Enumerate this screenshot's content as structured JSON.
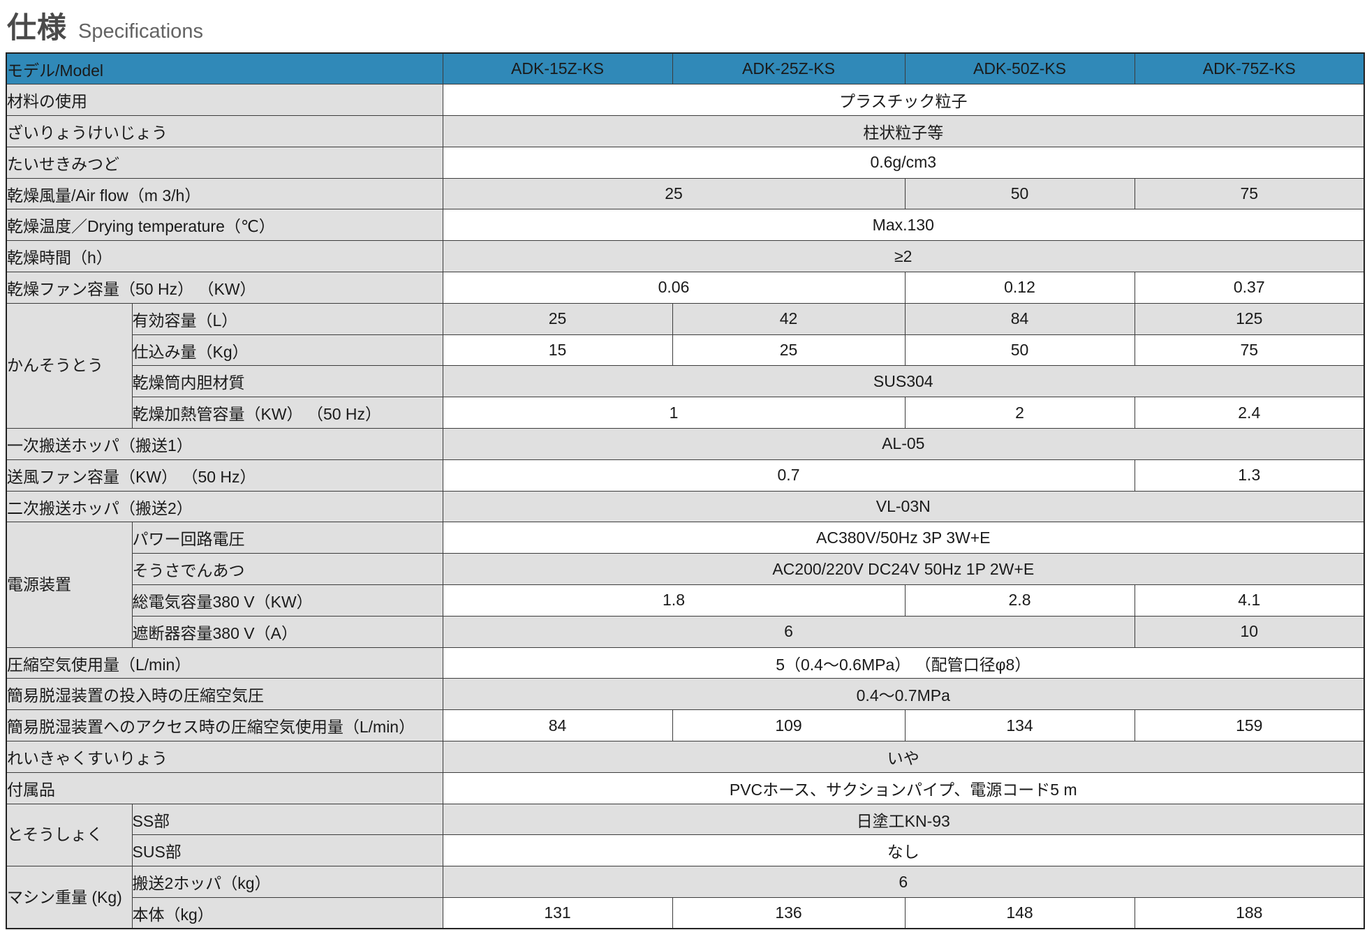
{
  "page": {
    "title_ja": "仕様",
    "title_en": "Specifications"
  },
  "colors": {
    "header_bg": "#3089B8",
    "header_text": "#FFFFFF",
    "gray_cell": "#E0E0E0",
    "white_cell": "#FFFFFF",
    "border": "#3C3C3C",
    "body_text": "#1A1A1A"
  },
  "table": {
    "header": {
      "label": "モデル/Model",
      "models": [
        "ADK-15Z-KS",
        "ADK-25Z-KS",
        "ADK-50Z-KS",
        "ADK-75Z-KS"
      ]
    },
    "rows": [
      {
        "label": "材料の使用",
        "cells": [
          {
            "t": "プラスチック粒子",
            "s": 4
          }
        ]
      },
      {
        "label": "ざいりょうけいじょう",
        "cells": [
          {
            "t": "柱状粒子等",
            "s": 4
          }
        ]
      },
      {
        "label": "たいせきみつど",
        "cells": [
          {
            "t": "0.6g/cm3",
            "s": 4
          }
        ]
      },
      {
        "label": "乾燥風量/Air flow（m 3/h）",
        "cells": [
          {
            "t": "25",
            "s": 2
          },
          {
            "t": "50",
            "s": 1
          },
          {
            "t": "75",
            "s": 1
          }
        ]
      },
      {
        "label": "乾燥温度／Drying temperature（℃）",
        "cells": [
          {
            "t": "Max.130",
            "s": 4
          }
        ]
      },
      {
        "label": "乾燥時間（h）",
        "cells": [
          {
            "t": "≥2",
            "s": 4
          }
        ]
      },
      {
        "label": "乾燥ファン容量（50 Hz） （KW）",
        "cells": [
          {
            "t": "0.06",
            "s": 2
          },
          {
            "t": "0.12",
            "s": 1
          },
          {
            "t": "0.37",
            "s": 1
          }
        ]
      },
      {
        "group": {
          "label": "かんそうとう",
          "rows": 4
        },
        "label": "有効容量（L）",
        "cells": [
          {
            "t": "25",
            "s": 1
          },
          {
            "t": "42",
            "s": 1
          },
          {
            "t": "84",
            "s": 1
          },
          {
            "t": "125",
            "s": 1
          }
        ]
      },
      {
        "label": "仕込み量（Kg）",
        "cells": [
          {
            "t": "15",
            "s": 1
          },
          {
            "t": "25",
            "s": 1
          },
          {
            "t": "50",
            "s": 1
          },
          {
            "t": "75",
            "s": 1
          }
        ]
      },
      {
        "label": "乾燥筒内胆材質",
        "cells": [
          {
            "t": "SUS304",
            "s": 4
          }
        ]
      },
      {
        "label": "乾燥加熱管容量（KW） （50 Hz）",
        "cells": [
          {
            "t": "1",
            "s": 2
          },
          {
            "t": "2",
            "s": 1
          },
          {
            "t": "2.4",
            "s": 1
          }
        ]
      },
      {
        "label": "一次搬送ホッパ（搬送1）",
        "cells": [
          {
            "t": "AL-05",
            "s": 4
          }
        ]
      },
      {
        "label": "送風ファン容量（KW） （50 Hz）",
        "cells": [
          {
            "t": "0.7",
            "s": 3
          },
          {
            "t": "1.3",
            "s": 1
          }
        ]
      },
      {
        "label": "二次搬送ホッパ（搬送2）",
        "cells": [
          {
            "t": "VL-03N",
            "s": 4
          }
        ]
      },
      {
        "group": {
          "label": "電源装置",
          "rows": 4
        },
        "label": "パワー回路電圧",
        "cells": [
          {
            "t": "AC380V/50Hz 3P 3W+E",
            "s": 4
          }
        ]
      },
      {
        "label": "そうさでんあつ",
        "cells": [
          {
            "t": "AC200/220V DC24V 50Hz 1P 2W+E",
            "s": 4
          }
        ]
      },
      {
        "label": "総電気容量380 V（KW）",
        "cells": [
          {
            "t": "1.8",
            "s": 2
          },
          {
            "t": "2.8",
            "s": 1
          },
          {
            "t": "4.1",
            "s": 1
          }
        ]
      },
      {
        "label": "遮断器容量380 V（A）",
        "cells": [
          {
            "t": "6",
            "s": 3
          },
          {
            "t": "10",
            "s": 1
          }
        ]
      },
      {
        "label": "圧縮空気使用量（L/min）",
        "cells": [
          {
            "t": "5（0.4～0.6MPa） （配管口径φ8）",
            "s": 4
          }
        ]
      },
      {
        "label": "簡易脱湿装置の投入時の圧縮空気圧",
        "cells": [
          {
            "t": "0.4～0.7MPa",
            "s": 4
          }
        ]
      },
      {
        "label": "簡易脱湿装置へのアクセス時の圧縮空気使用量（L/min）",
        "cells": [
          {
            "t": "84",
            "s": 1
          },
          {
            "t": "109",
            "s": 1
          },
          {
            "t": "134",
            "s": 1
          },
          {
            "t": "159",
            "s": 1
          }
        ]
      },
      {
        "label": "れいきゃくすいりょう",
        "cells": [
          {
            "t": "いや",
            "s": 4
          }
        ]
      },
      {
        "label": "付属品",
        "cells": [
          {
            "t": "PVCホース、サクションパイプ、電源コード5 m",
            "s": 4
          }
        ]
      },
      {
        "group": {
          "label": "とそうしょく",
          "rows": 2
        },
        "label": "SS部",
        "cells": [
          {
            "t": "日塗工KN-93",
            "s": 4
          }
        ]
      },
      {
        "label": "SUS部",
        "cells": [
          {
            "t": "なし",
            "s": 4
          }
        ]
      },
      {
        "group": {
          "label": "マシン重量 (Kg)",
          "rows": 2
        },
        "label": "搬送2ホッパ（kg）",
        "cells": [
          {
            "t": "6",
            "s": 4
          }
        ]
      },
      {
        "label": "本体（kg）",
        "cells": [
          {
            "t": "131",
            "s": 1
          },
          {
            "t": "136",
            "s": 1
          },
          {
            "t": "148",
            "s": 1
          },
          {
            "t": "188",
            "s": 1
          }
        ]
      }
    ]
  }
}
